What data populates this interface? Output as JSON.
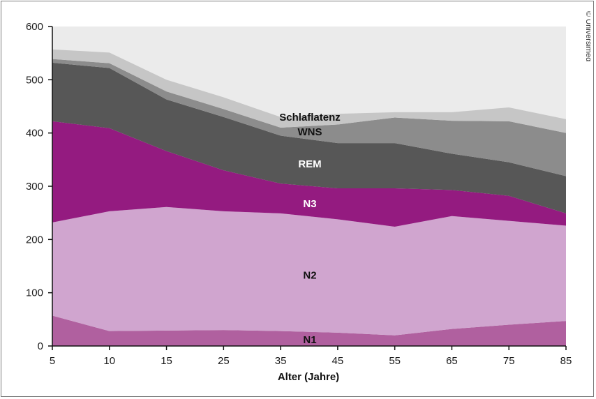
{
  "copyright": "© Universimed",
  "chart_data": {
    "type": "area",
    "stacked": true,
    "xlabel": "Alter (Jahre)",
    "ylabel": "",
    "x": [
      5,
      10,
      15,
      25,
      35,
      45,
      55,
      65,
      75,
      85
    ],
    "ylim": [
      0,
      600
    ],
    "yticks": [
      0,
      100,
      200,
      300,
      400,
      500,
      600
    ],
    "grid": false,
    "series": [
      {
        "name": "N1",
        "color": "#b0609f",
        "values": [
          57,
          28,
          29,
          30,
          28,
          25,
          20,
          32,
          40,
          47
        ]
      },
      {
        "name": "N2",
        "color": "#d0a5cf",
        "values": [
          175,
          225,
          232,
          223,
          221,
          213,
          204,
          212,
          195,
          179
        ]
      },
      {
        "name": "N3",
        "color": "#941b80",
        "values": [
          190,
          156,
          105,
          77,
          56,
          58,
          72,
          49,
          47,
          23
        ]
      },
      {
        "name": "REM",
        "color": "#575757",
        "values": [
          110,
          113,
          97,
          100,
          90,
          85,
          85,
          68,
          63,
          70
        ]
      },
      {
        "name": "WNS",
        "color": "#8c8c8c",
        "values": [
          7,
          9,
          15,
          15,
          15,
          35,
          48,
          62,
          77,
          81
        ]
      },
      {
        "name": "Schlaflatenz",
        "color": "#c6c6c6",
        "values": [
          18,
          20,
          22,
          22,
          20,
          20,
          10,
          16,
          26,
          26
        ]
      }
    ],
    "background_color": "#ebebeb",
    "labels": [
      {
        "text": "N1",
        "x": 40,
        "y": 12,
        "color": "#111111"
      },
      {
        "text": "N2",
        "x": 40,
        "y": 133,
        "color": "#111111"
      },
      {
        "text": "N3",
        "x": 40,
        "y": 267,
        "color": "#ffffff"
      },
      {
        "text": "REM",
        "x": 40,
        "y": 342,
        "color": "#ffffff"
      },
      {
        "text": "WNS",
        "x": 40,
        "y": 402,
        "color": "#111111"
      },
      {
        "text": "Schlaflatenz",
        "x": 40,
        "y": 430,
        "color": "#111111"
      }
    ]
  }
}
